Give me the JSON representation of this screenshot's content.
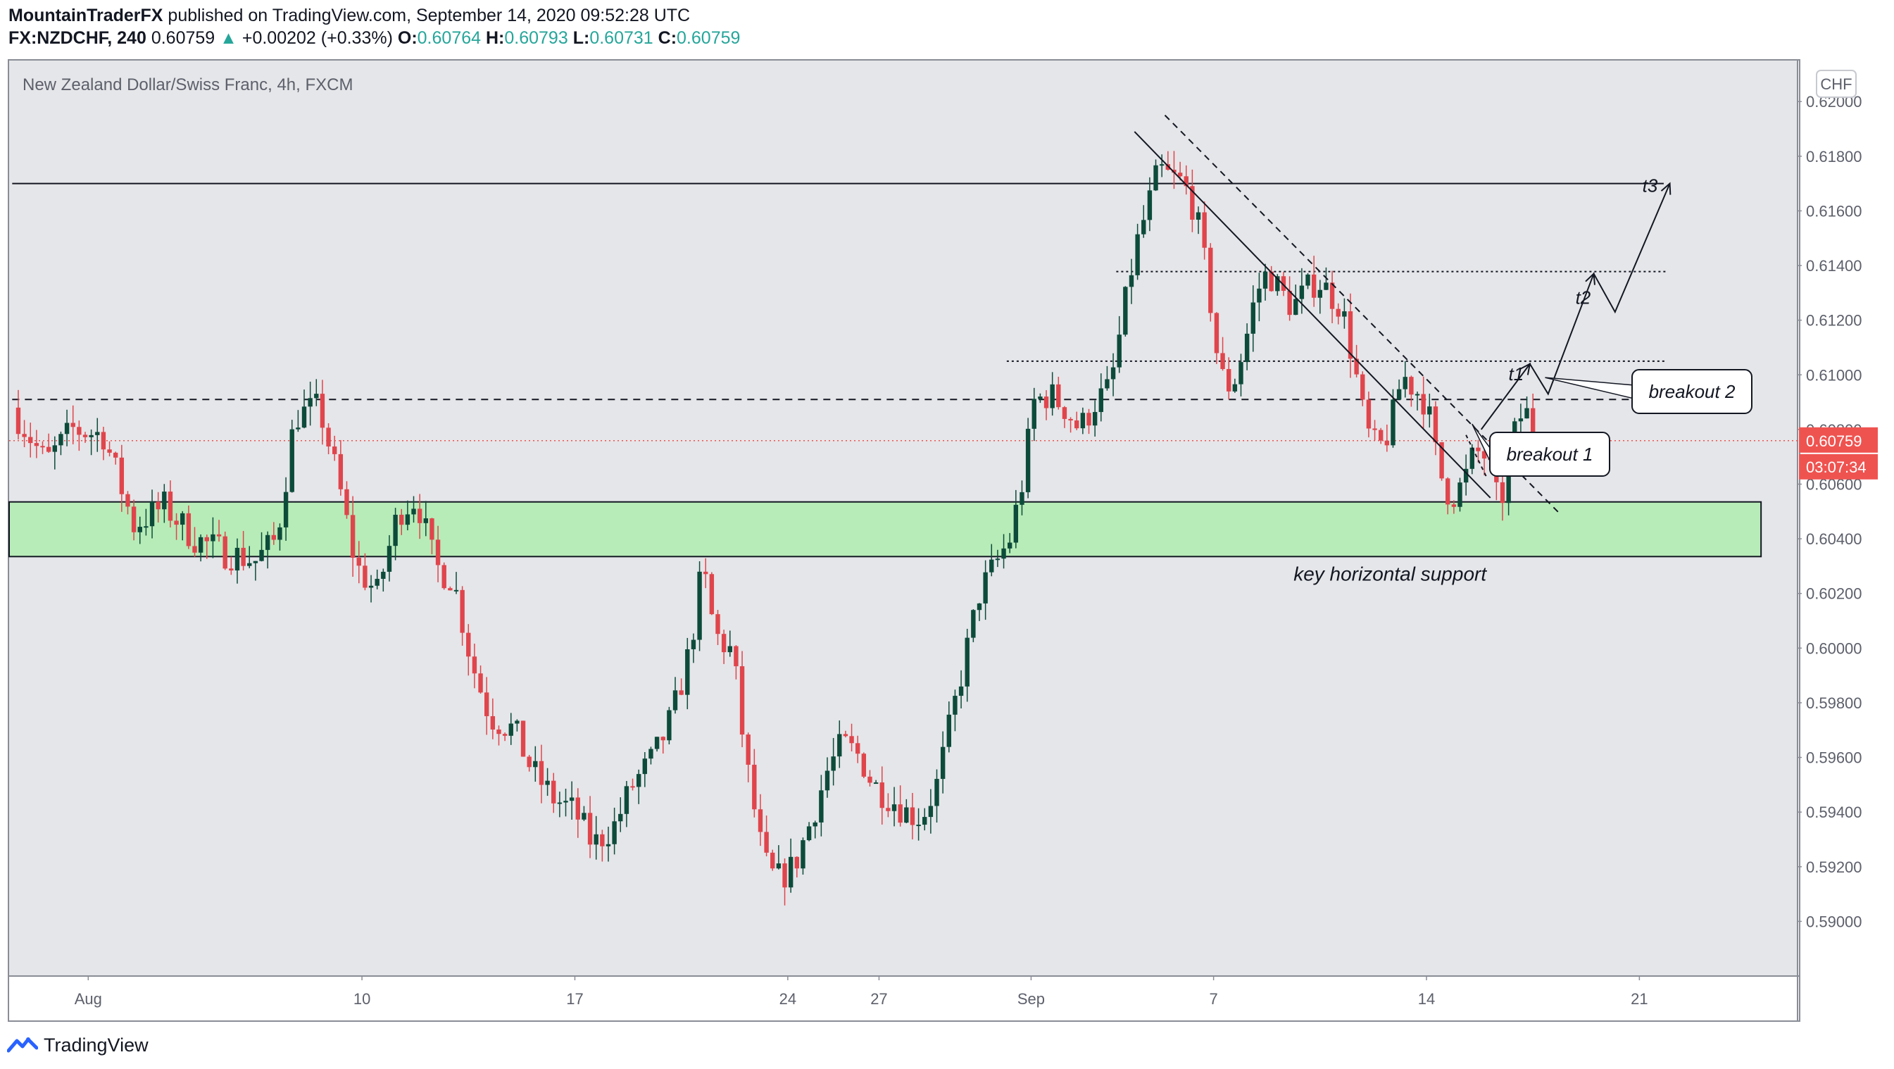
{
  "header": {
    "author": "MountainTraderFX",
    "published": "published on TradingView.com, September 14, 2020 09:52:28 UTC",
    "symbol": "FX:NZDCHF, 240",
    "last": "0.60759",
    "change": "+0.00202 (+0.33%)",
    "o_label": "O:",
    "o_val": "0.60764",
    "h_label": "H:",
    "h_val": "0.60793",
    "l_label": "L:",
    "l_val": "0.60731",
    "c_label": "C:",
    "c_val": "0.60759"
  },
  "footer": {
    "brand": "TradingView"
  },
  "chart_data": {
    "type": "candlestick",
    "title": "New Zealand Dollar/Swiss Franc, 4h, FXCM",
    "currency_label": "CHF",
    "ylim": [
      0.588,
      0.6215
    ],
    "y_ticks": [
      "0.62000",
      "0.61800",
      "0.61600",
      "0.61400",
      "0.61200",
      "0.61000",
      "0.60800",
      "0.60600",
      "0.60400",
      "0.60200",
      "0.60000",
      "0.59800",
      "0.59600",
      "0.59400",
      "0.59200",
      "0.59000"
    ],
    "x_ticks": [
      {
        "label": "Aug",
        "day": 1
      },
      {
        "label": "10",
        "day": 10
      },
      {
        "label": "17",
        "day": 17
      },
      {
        "label": "24",
        "day": 24
      },
      {
        "label": "27",
        "day": 27
      },
      {
        "label": "Sep",
        "day": 32
      },
      {
        "label": "7",
        "day": 38
      },
      {
        "label": "14",
        "day": 45
      },
      {
        "label": "21",
        "day": 52
      }
    ],
    "x_range_days": [
      -1.6,
      57.2
    ],
    "last_price": "0.60759",
    "countdown": "03:07:34",
    "colors": {
      "up": "#0c4b3a",
      "down": "#e0454c",
      "zone": "#b7ecb8",
      "price_tag": "#ef5350"
    },
    "support_zone": {
      "low": 0.60335,
      "high": 0.60535,
      "label": "key horizontal support"
    },
    "levels": [
      {
        "price": 0.617,
        "style": "solid"
      },
      {
        "price": 0.61378,
        "style": "dotted"
      },
      {
        "price": 0.6105,
        "style": "dotted"
      },
      {
        "price": 0.6091,
        "style": "dashed"
      }
    ],
    "annotations": [
      {
        "label": "breakout 1"
      },
      {
        "label": "breakout 2"
      },
      {
        "label": "t1"
      },
      {
        "label": "t2"
      },
      {
        "label": "t3"
      }
    ],
    "ohlc_path": [
      [
        -1.5,
        0.6088
      ],
      [
        -0.4,
        0.6068
      ],
      [
        0.5,
        0.608
      ],
      [
        1.5,
        0.6078
      ],
      [
        2.5,
        0.6045
      ],
      [
        3.5,
        0.6052
      ],
      [
        4.5,
        0.604
      ],
      [
        5.5,
        0.6035
      ],
      [
        6.5,
        0.6032
      ],
      [
        7.2,
        0.604
      ],
      [
        7.8,
        0.6085
      ],
      [
        8.6,
        0.6088
      ],
      [
        9.2,
        0.6062
      ],
      [
        9.8,
        0.603
      ],
      [
        10.5,
        0.602
      ],
      [
        11.2,
        0.605
      ],
      [
        11.8,
        0.6055
      ],
      [
        12.4,
        0.603
      ],
      [
        13.0,
        0.6025
      ],
      [
        13.6,
        0.5995
      ],
      [
        14.2,
        0.5975
      ],
      [
        15.0,
        0.597
      ],
      [
        15.6,
        0.5955
      ],
      [
        16.3,
        0.5945
      ],
      [
        17.0,
        0.594
      ],
      [
        17.6,
        0.5928
      ],
      [
        18.3,
        0.5935
      ],
      [
        18.9,
        0.595
      ],
      [
        19.6,
        0.596
      ],
      [
        20.2,
        0.5975
      ],
      [
        20.8,
        0.6
      ],
      [
        21.2,
        0.603
      ],
      [
        21.6,
        0.6005
      ],
      [
        22.2,
        0.5998
      ],
      [
        22.6,
        0.596
      ],
      [
        23.2,
        0.5922
      ],
      [
        23.6,
        0.5915
      ],
      [
        24.2,
        0.592
      ],
      [
        24.7,
        0.5935
      ],
      [
        25.3,
        0.5955
      ],
      [
        25.8,
        0.5965
      ],
      [
        26.4,
        0.596
      ],
      [
        26.8,
        0.595
      ],
      [
        27.4,
        0.5945
      ],
      [
        27.9,
        0.594
      ],
      [
        28.4,
        0.5938
      ],
      [
        28.9,
        0.595
      ],
      [
        29.4,
        0.5975
      ],
      [
        29.9,
        0.6
      ],
      [
        30.3,
        0.602
      ],
      [
        30.8,
        0.603
      ],
      [
        31.3,
        0.604
      ],
      [
        31.7,
        0.606
      ],
      [
        32.1,
        0.609
      ],
      [
        32.6,
        0.6093
      ],
      [
        33.1,
        0.6088
      ],
      [
        33.6,
        0.608
      ],
      [
        34.1,
        0.609
      ],
      [
        34.6,
        0.6095
      ],
      [
        35.0,
        0.612
      ],
      [
        35.4,
        0.6145
      ],
      [
        35.8,
        0.616
      ],
      [
        36.2,
        0.6175
      ],
      [
        36.6,
        0.6172
      ],
      [
        37.0,
        0.617
      ],
      [
        37.4,
        0.616
      ],
      [
        37.8,
        0.6135
      ],
      [
        38.2,
        0.61
      ],
      [
        38.6,
        0.6095
      ],
      [
        39.0,
        0.611
      ],
      [
        39.4,
        0.613
      ],
      [
        39.8,
        0.6138
      ],
      [
        40.2,
        0.613
      ],
      [
        40.6,
        0.6125
      ],
      [
        41.0,
        0.613
      ],
      [
        41.4,
        0.6135
      ],
      [
        41.8,
        0.613
      ],
      [
        42.2,
        0.6125
      ],
      [
        42.6,
        0.6105
      ],
      [
        43.0,
        0.608
      ],
      [
        43.4,
        0.6072
      ],
      [
        43.8,
        0.608
      ],
      [
        44.2,
        0.61
      ],
      [
        44.6,
        0.6095
      ],
      [
        45.0,
        0.609
      ],
      [
        45.4,
        0.6065
      ],
      [
        45.8,
        0.6055
      ],
      [
        46.2,
        0.606
      ],
      [
        46.6,
        0.6072
      ],
      [
        47.0,
        0.607
      ],
      [
        47.4,
        0.605
      ],
      [
        47.8,
        0.6075
      ],
      [
        48.2,
        0.6088
      ],
      [
        48.6,
        0.6078
      ]
    ]
  }
}
